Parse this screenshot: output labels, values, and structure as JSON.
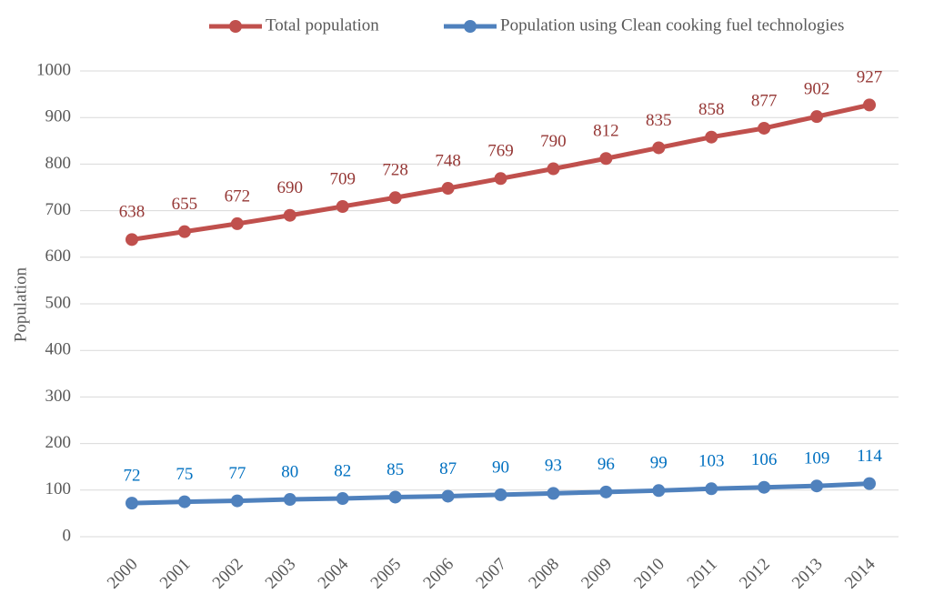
{
  "chart_data": {
    "type": "line",
    "y_label": "Population",
    "categories": [
      "2000",
      "2001",
      "2002",
      "2003",
      "2004",
      "2005",
      "2006",
      "2007",
      "2008",
      "2009",
      "2010",
      "2011",
      "2012",
      "2013",
      "2014"
    ],
    "series": [
      {
        "name": "Total population",
        "color": "#c0504d",
        "label_color": "#953735",
        "values": [
          638,
          655,
          672,
          690,
          709,
          728,
          748,
          769,
          790,
          812,
          835,
          858,
          877,
          902,
          927
        ]
      },
      {
        "name": "Population using Clean cooking fuel technologies",
        "color": "#4f81bd",
        "label_color": "#0070c0",
        "values": [
          72,
          75,
          77,
          80,
          82,
          85,
          87,
          90,
          93,
          96,
          99,
          103,
          106,
          109,
          114
        ]
      }
    ],
    "ylim": [
      0,
      1000
    ],
    "yticks": [
      0,
      100,
      200,
      300,
      400,
      500,
      600,
      700,
      800,
      900,
      1000
    ],
    "grid": true,
    "legend": "top"
  }
}
